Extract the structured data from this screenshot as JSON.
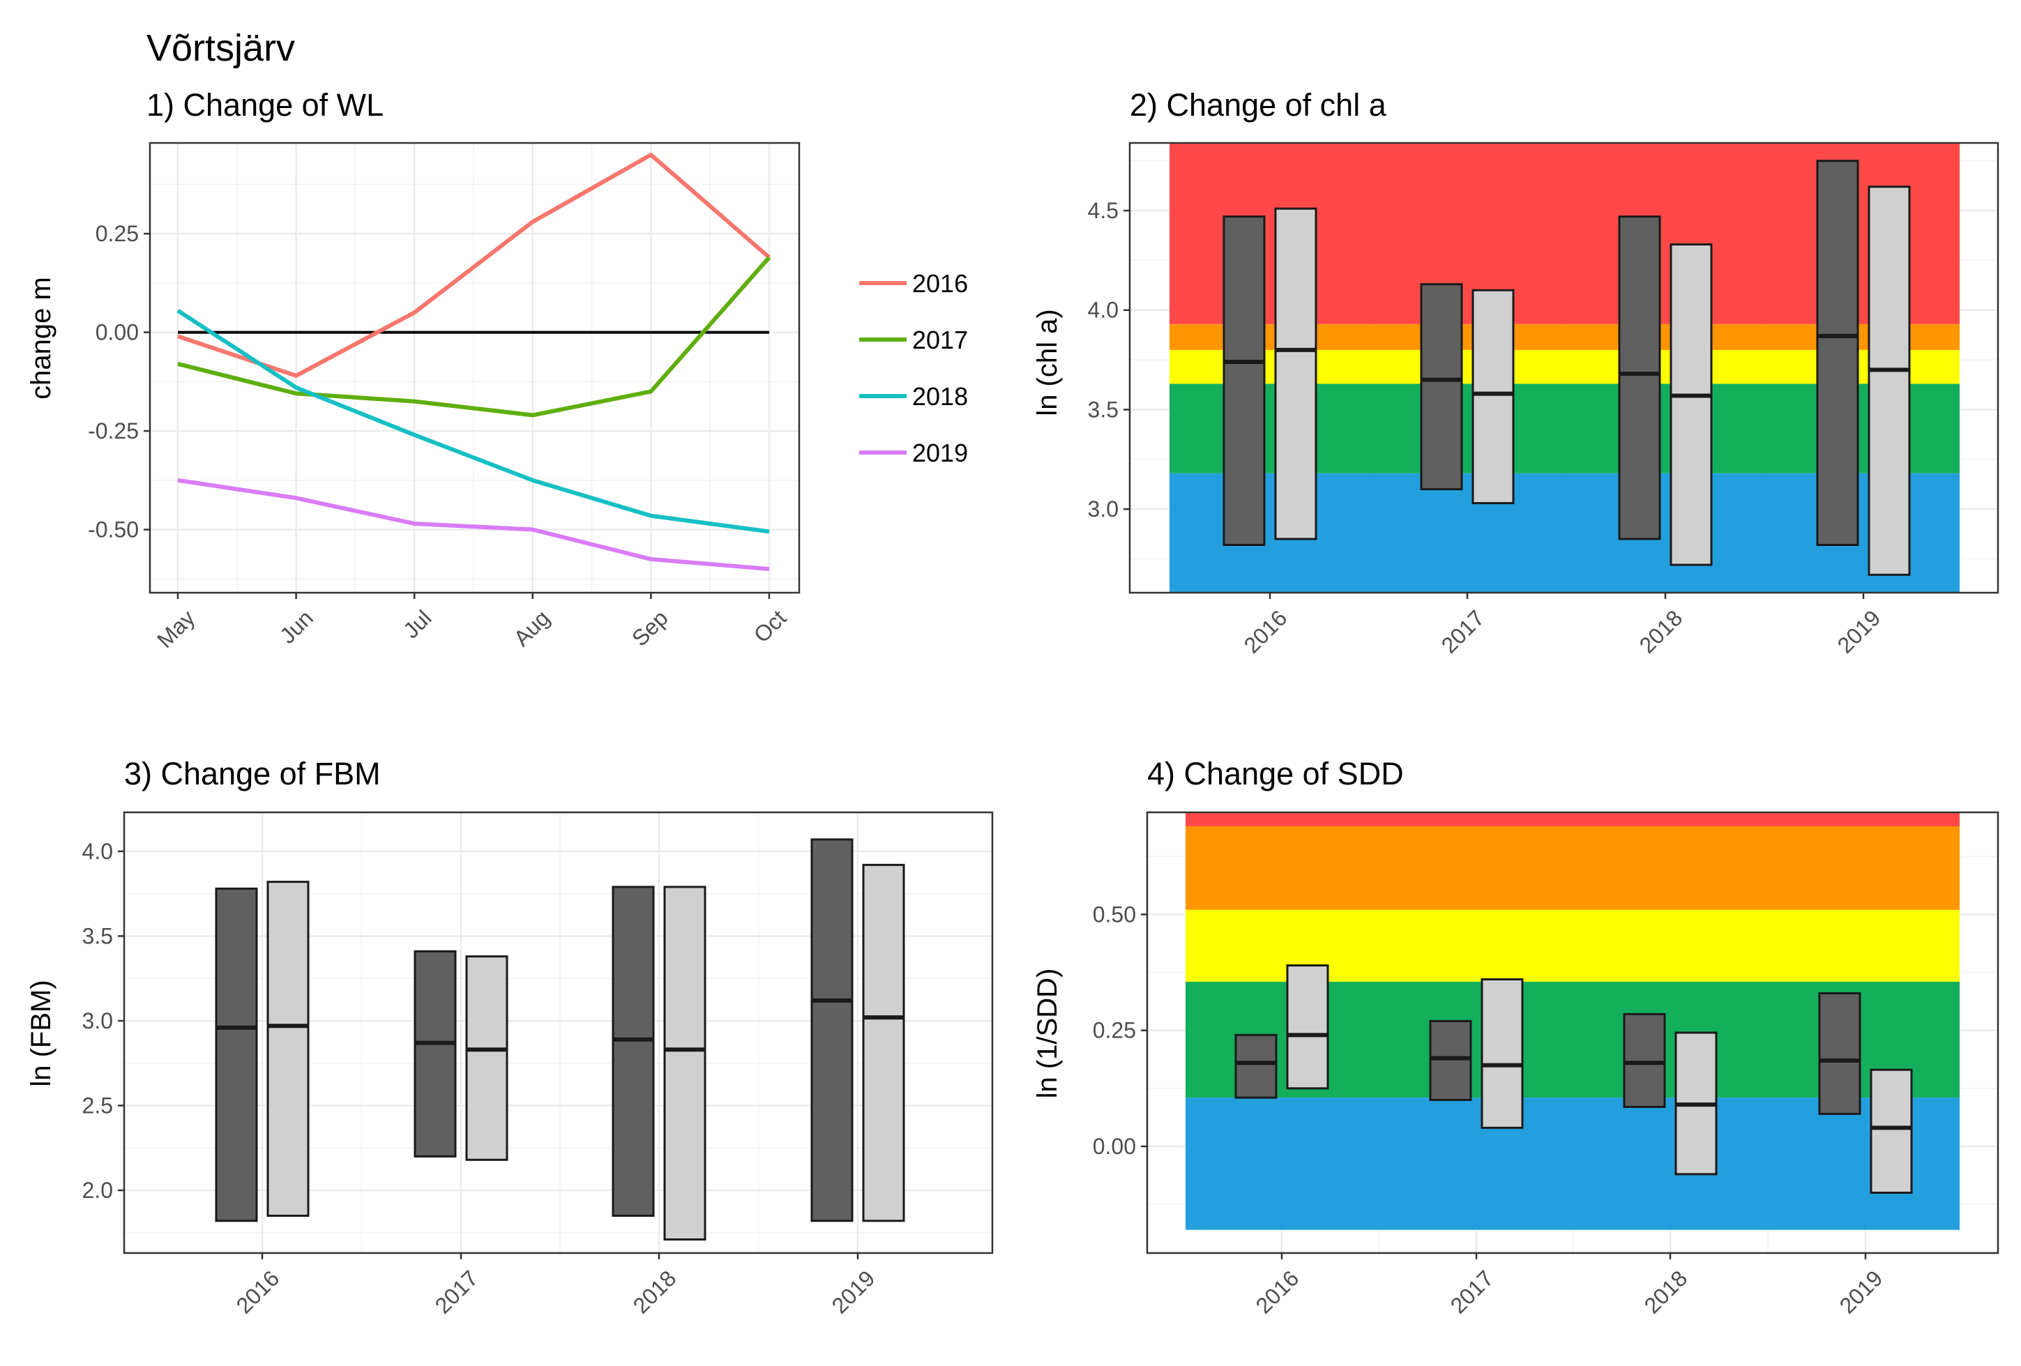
{
  "main_title": "Võrtsjärv",
  "colors": {
    "2016": "#F8766D",
    "2017": "#5FAE0E",
    "2018": "#16BFC4",
    "2019": "#D97CF8",
    "red": "#FF4949",
    "orange": "#FF9500",
    "yellow": "#FFFF00",
    "green": "#14AF5B",
    "blue": "#249FDE",
    "box_dark": "#606060",
    "box_light": "#D0D0D0"
  },
  "chart_data": [
    {
      "type": "line",
      "title": "1) Change of WL",
      "xlabel": "",
      "ylabel": "change m",
      "categories": [
        "May",
        "Jun",
        "Jul",
        "Aug",
        "Sep",
        "Oct"
      ],
      "ylim": [
        -0.66,
        0.48
      ],
      "yticks": [
        0.25,
        0.0,
        -0.25,
        -0.5
      ],
      "ytick_labels": [
        "0.25",
        "0.00",
        "-0.25",
        "-0.50"
      ],
      "reference_line": 0,
      "series": [
        {
          "name": "2016",
          "values": [
            -0.01,
            -0.11,
            0.05,
            0.28,
            0.45,
            0.19
          ]
        },
        {
          "name": "2017",
          "values": [
            -0.08,
            -0.155,
            -0.175,
            -0.21,
            -0.15,
            0.19
          ]
        },
        {
          "name": "2018",
          "values": [
            0.055,
            -0.14,
            -0.26,
            -0.375,
            -0.465,
            -0.505
          ]
        },
        {
          "name": "2019",
          "values": [
            -0.375,
            -0.42,
            -0.485,
            -0.5,
            -0.575,
            -0.6
          ]
        }
      ]
    },
    {
      "type": "boxrange",
      "title": "2) Change of chl a",
      "xlabel": "",
      "ylabel": "ln (chl a)",
      "categories": [
        "2016",
        "2017",
        "2018",
        "2019"
      ],
      "ylim": [
        2.58,
        4.84
      ],
      "yticks": [
        3.0,
        3.5,
        4.0,
        4.5
      ],
      "ytick_labels": [
        "3.0",
        "3.5",
        "4.0",
        "4.5"
      ],
      "bands": [
        {
          "class": "blue",
          "from": 2.58,
          "to": 3.18
        },
        {
          "class": "green",
          "from": 3.18,
          "to": 3.63
        },
        {
          "class": "yellow",
          "from": 3.63,
          "to": 3.8
        },
        {
          "class": "orange",
          "from": 3.8,
          "to": 3.93
        },
        {
          "class": "red",
          "from": 3.93,
          "to": 4.84
        }
      ],
      "boxes": [
        {
          "year": "2016",
          "dark": [
            2.82,
            3.74,
            4.47
          ],
          "light": [
            2.85,
            3.8,
            4.51
          ]
        },
        {
          "year": "2017",
          "dark": [
            3.1,
            3.65,
            4.13
          ],
          "light": [
            3.03,
            3.58,
            4.1
          ]
        },
        {
          "year": "2018",
          "dark": [
            2.85,
            3.68,
            4.47
          ],
          "light": [
            2.72,
            3.57,
            4.33
          ]
        },
        {
          "year": "2019",
          "dark": [
            2.82,
            3.87,
            4.75
          ],
          "light": [
            2.67,
            3.7,
            4.62
          ]
        }
      ]
    },
    {
      "type": "boxrange",
      "title": "3) Change of FBM",
      "xlabel": "",
      "ylabel": "ln (FBM)",
      "categories": [
        "2016",
        "2017",
        "2018",
        "2019"
      ],
      "ylim": [
        1.63,
        4.23
      ],
      "yticks": [
        2.0,
        2.5,
        3.0,
        3.5,
        4.0
      ],
      "ytick_labels": [
        "2.0",
        "2.5",
        "3.0",
        "3.5",
        "4.0"
      ],
      "bands": [],
      "boxes": [
        {
          "year": "2016",
          "dark": [
            1.82,
            2.96,
            3.78
          ],
          "light": [
            1.85,
            2.97,
            3.82
          ]
        },
        {
          "year": "2017",
          "dark": [
            2.2,
            2.87,
            3.41
          ],
          "light": [
            2.18,
            2.83,
            3.38
          ]
        },
        {
          "year": "2018",
          "dark": [
            1.85,
            2.89,
            3.79
          ],
          "light": [
            1.71,
            2.83,
            3.79
          ]
        },
        {
          "year": "2019",
          "dark": [
            1.82,
            3.12,
            4.07
          ],
          "light": [
            1.82,
            3.02,
            3.92
          ]
        }
      ]
    },
    {
      "type": "boxrange",
      "title": "4) Change of SDD",
      "xlabel": "",
      "ylabel": "ln (1/SDD)",
      "categories": [
        "2016",
        "2017",
        "2018",
        "2019"
      ],
      "ylim": [
        -0.23,
        0.72
      ],
      "yticks": [
        0.0,
        0.25,
        0.5
      ],
      "ytick_labels": [
        "0.00",
        "0.25",
        "0.50"
      ],
      "bands": [
        {
          "class": "blue",
          "from": -0.18,
          "to": 0.105
        },
        {
          "class": "green",
          "from": 0.105,
          "to": 0.355
        },
        {
          "class": "yellow",
          "from": 0.355,
          "to": 0.51
        },
        {
          "class": "orange",
          "from": 0.51,
          "to": 0.69
        },
        {
          "class": "red",
          "from": 0.69,
          "to": 0.72
        }
      ],
      "boxes": [
        {
          "year": "2016",
          "dark": [
            0.105,
            0.18,
            0.24
          ],
          "light": [
            0.125,
            0.24,
            0.39
          ]
        },
        {
          "year": "2017",
          "dark": [
            0.1,
            0.19,
            0.27
          ],
          "light": [
            0.04,
            0.175,
            0.36
          ]
        },
        {
          "year": "2018",
          "dark": [
            0.085,
            0.18,
            0.285
          ],
          "light": [
            -0.06,
            0.09,
            0.245
          ]
        },
        {
          "year": "2019",
          "dark": [
            0.07,
            0.185,
            0.33
          ],
          "light": [
            -0.1,
            0.04,
            0.165
          ]
        }
      ]
    }
  ]
}
